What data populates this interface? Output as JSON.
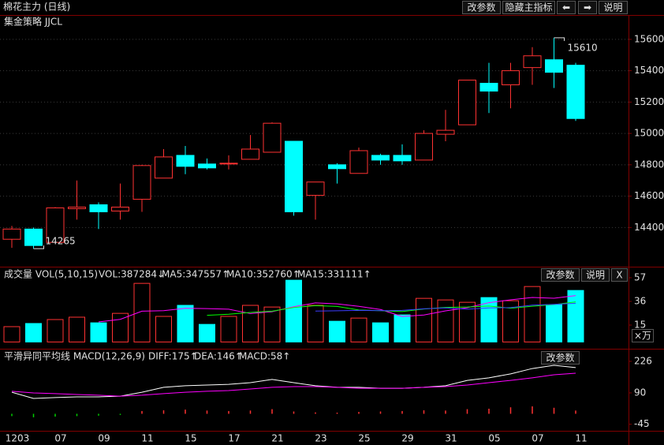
{
  "header": {
    "title": "棉花主力 (日线)",
    "buttons": [
      "改参数",
      "隐藏主指标",
      "⬅",
      "➡",
      "说明"
    ]
  },
  "chart_data": [
    {
      "type": "candlestick",
      "title": "集金策略 JJCL",
      "categories": [
        "1203",
        null,
        "07",
        null,
        "09",
        null,
        "11",
        null,
        "15",
        null,
        "17",
        null,
        "21",
        null,
        "23",
        null,
        "25",
        null,
        "29",
        null,
        "31",
        null,
        "05",
        null,
        "07",
        null,
        "11"
      ],
      "open": [
        14325,
        14390,
        14305,
        14520,
        14545,
        14505,
        14580,
        14715,
        14860,
        14805,
        14805,
        14835,
        14880,
        14950,
        14605,
        14800,
        14745,
        14860,
        14860,
        14830,
        14995,
        15055,
        15320,
        15310,
        15420,
        15470,
        15435
      ],
      "high": [
        14410,
        14400,
        14530,
        14700,
        14560,
        14680,
        14800,
        14900,
        14920,
        14840,
        14860,
        14990,
        15070,
        14950,
        14690,
        14810,
        14910,
        14870,
        14930,
        15020,
        15150,
        15340,
        15450,
        15450,
        15550,
        15610,
        15450
      ],
      "low": [
        14270,
        14265,
        14305,
        14450,
        14390,
        14450,
        14500,
        14715,
        14740,
        14770,
        14770,
        14835,
        14880,
        14475,
        14450,
        14680,
        14745,
        14800,
        14800,
        14830,
        14950,
        15055,
        15130,
        15160,
        15310,
        15290,
        15080
      ],
      "close": [
        14390,
        14285,
        14525,
        14530,
        14500,
        14530,
        14795,
        14850,
        14790,
        14780,
        14810,
        14900,
        15065,
        14500,
        14690,
        14775,
        14890,
        14830,
        14825,
        15000,
        15020,
        15340,
        15270,
        15400,
        15495,
        15390,
        15095
      ],
      "up_color": "#ff3232",
      "down_color": "#00ffff",
      "ylim": [
        14150,
        15700
      ],
      "yticks": [
        14400,
        14600,
        14800,
        15000,
        15200,
        15400,
        15600
      ],
      "grid": true
    },
    {
      "type": "volume",
      "title": "成交量 VOL(5,10,15)",
      "readout": "VOL:387284↓",
      "unit": "×万",
      "buttons": [
        "改参数",
        "说明",
        "X"
      ],
      "values": [
        13.6,
        16.4,
        19.9,
        22,
        17,
        25.4,
        52,
        22.7,
        32.5,
        15.6,
        22.7,
        32.5,
        31,
        54.8,
        32.5,
        18.4,
        21.2,
        17,
        24,
        38.7,
        37.3,
        35.2,
        39.4,
        36.6,
        49.2,
        33.1,
        45.7
      ],
      "series": [
        {
          "name": "MA5:347557↑",
          "color": "#ff00ff",
          "values": [
            null,
            null,
            null,
            null,
            17.8,
            20.1,
            27.3,
            27.8,
            29.9,
            29.6,
            29.1,
            25.2,
            26.9,
            31.3,
            34.7,
            33.8,
            31.6,
            28.8,
            22.6,
            23.9,
            27.6,
            30.4,
            34.9,
            37.4,
            39.5,
            38.8,
            41.2
          ]
        },
        {
          "name": "MA10:352760↑",
          "color": "#00ff00",
          "values": [
            null,
            null,
            null,
            null,
            null,
            null,
            null,
            null,
            null,
            23.7,
            24.6,
            26.2,
            27.3,
            30.6,
            32.2,
            31.5,
            28.4,
            27.8,
            27.0,
            29.3,
            30.7,
            31.0,
            31.9,
            30.0,
            31.7,
            33.2,
            35.6
          ]
        },
        {
          "name": "MA15:331111↑",
          "color": "#3c3cff",
          "values": [
            null,
            null,
            null,
            null,
            null,
            null,
            null,
            null,
            null,
            null,
            null,
            null,
            null,
            null,
            27.4,
            27.7,
            28.0,
            27.8,
            28.0,
            29.4,
            30.2,
            29.1,
            30.2,
            30.5,
            32.7,
            33.4,
            34.3
          ]
        }
      ],
      "ylim": [
        -5.3,
        65.4
      ],
      "yticks": [
        15,
        36,
        57
      ]
    },
    {
      "type": "macd",
      "title": "平滑异同平均线 MACD(12,26,9)",
      "buttons": [
        "改参数"
      ],
      "pos_color": "#ff3232",
      "neg_color": "#00d000",
      "series": [
        {
          "name": "DIFF:175↑",
          "color": "#ffffff",
          "values": [
            93,
            66,
            70,
            73,
            73,
            76,
            93,
            114,
            121,
            124,
            127,
            134,
            148,
            134,
            121,
            114,
            114,
            110,
            110,
            114,
            121,
            144,
            155,
            172,
            195,
            209,
            199
          ]
        },
        {
          "name": "DEA:146↑",
          "color": "#ff00ff",
          "values": [
            97,
            90,
            87,
            83,
            80,
            76,
            80,
            87,
            93,
            97,
            100,
            107,
            114,
            117,
            117,
            114,
            110,
            110,
            110,
            114,
            117,
            124,
            134,
            144,
            155,
            168,
            175
          ]
        },
        {
          "name": "MACD:58↑",
          "color": "#d0ff00",
          "bars": true,
          "values": [
            -10,
            -15,
            -12,
            -10,
            -8,
            -5,
            12,
            15,
            18,
            14,
            12,
            14,
            20,
            10,
            6,
            5,
            8,
            10,
            12,
            15,
            14,
            20,
            22,
            28,
            32,
            26,
            14
          ]
        }
      ],
      "ylim": [
        -80,
        270
      ],
      "yticks": [
        -45,
        90,
        226
      ]
    }
  ]
}
